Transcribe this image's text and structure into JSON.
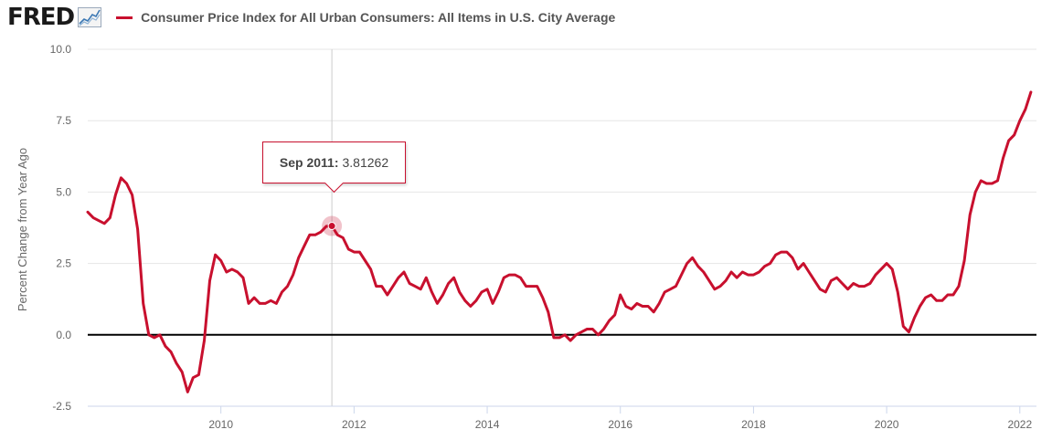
{
  "header": {
    "logo_text": "FRED",
    "series_title": "Consumer Price Index for All Urban Consumers: All Items in U.S. City Average",
    "series_color": "#c8102e"
  },
  "tooltip": {
    "date": "Sep 2011:",
    "value": "3.81262"
  },
  "chart_data": {
    "type": "line",
    "title": "Consumer Price Index for All Urban Consumers: All Items in U.S. City Average",
    "xlabel": "",
    "ylabel": "Percent Change from Year Ago",
    "xlim": [
      2008.0,
      2022.25
    ],
    "ylim": [
      -2.5,
      10.0
    ],
    "y_ticks": [
      -2.5,
      0.0,
      2.5,
      5.0,
      7.5,
      10.0
    ],
    "y_tick_labels": [
      "-2.5",
      "0.0",
      "2.5",
      "5.0",
      "7.5",
      "10.0"
    ],
    "x_ticks": [
      2010,
      2012,
      2014,
      2016,
      2018,
      2020,
      2022
    ],
    "x_tick_labels": [
      "2010",
      "2012",
      "2014",
      "2016",
      "2018",
      "2020",
      "2022"
    ],
    "grid": true,
    "highlight": {
      "x": 2011.667,
      "y": 3.81262,
      "label": "Sep 2011"
    },
    "series": [
      {
        "name": "Consumer Price Index for All Urban Consumers: All Items in U.S. City Average",
        "color": "#c8102e",
        "start": 2008.0,
        "step_months": 1,
        "values": [
          4.3,
          4.1,
          4.0,
          3.9,
          4.1,
          4.9,
          5.5,
          5.3,
          4.9,
          3.7,
          1.1,
          0.0,
          -0.1,
          0.0,
          -0.4,
          -0.6,
          -1.0,
          -1.3,
          -2.0,
          -1.5,
          -1.4,
          -0.2,
          1.9,
          2.8,
          2.6,
          2.2,
          2.3,
          2.2,
          2.0,
          1.1,
          1.3,
          1.1,
          1.1,
          1.2,
          1.1,
          1.5,
          1.7,
          2.1,
          2.7,
          3.1,
          3.5,
          3.5,
          3.6,
          3.8,
          3.81262,
          3.5,
          3.4,
          3.0,
          2.9,
          2.9,
          2.6,
          2.3,
          1.7,
          1.7,
          1.4,
          1.7,
          2.0,
          2.2,
          1.8,
          1.7,
          1.6,
          2.0,
          1.5,
          1.1,
          1.4,
          1.8,
          2.0,
          1.5,
          1.2,
          1.0,
          1.2,
          1.5,
          1.6,
          1.1,
          1.5,
          2.0,
          2.1,
          2.1,
          2.0,
          1.7,
          1.7,
          1.7,
          1.3,
          0.8,
          -0.1,
          -0.1,
          0.0,
          -0.2,
          0.0,
          0.1,
          0.2,
          0.2,
          0.0,
          0.2,
          0.5,
          0.7,
          1.4,
          1.0,
          0.9,
          1.1,
          1.0,
          1.0,
          0.8,
          1.1,
          1.5,
          1.6,
          1.7,
          2.1,
          2.5,
          2.7,
          2.4,
          2.2,
          1.9,
          1.6,
          1.7,
          1.9,
          2.2,
          2.0,
          2.2,
          2.1,
          2.1,
          2.2,
          2.4,
          2.5,
          2.8,
          2.9,
          2.9,
          2.7,
          2.3,
          2.5,
          2.2,
          1.9,
          1.6,
          1.5,
          1.9,
          2.0,
          1.8,
          1.6,
          1.8,
          1.7,
          1.7,
          1.8,
          2.1,
          2.3,
          2.5,
          2.3,
          1.5,
          0.3,
          0.1,
          0.6,
          1.0,
          1.3,
          1.4,
          1.2,
          1.2,
          1.4,
          1.4,
          1.7,
          2.6,
          4.2,
          5.0,
          5.4,
          5.3,
          5.3,
          5.4,
          6.2,
          6.8,
          7.0,
          7.5,
          7.9,
          8.5
        ]
      }
    ]
  }
}
